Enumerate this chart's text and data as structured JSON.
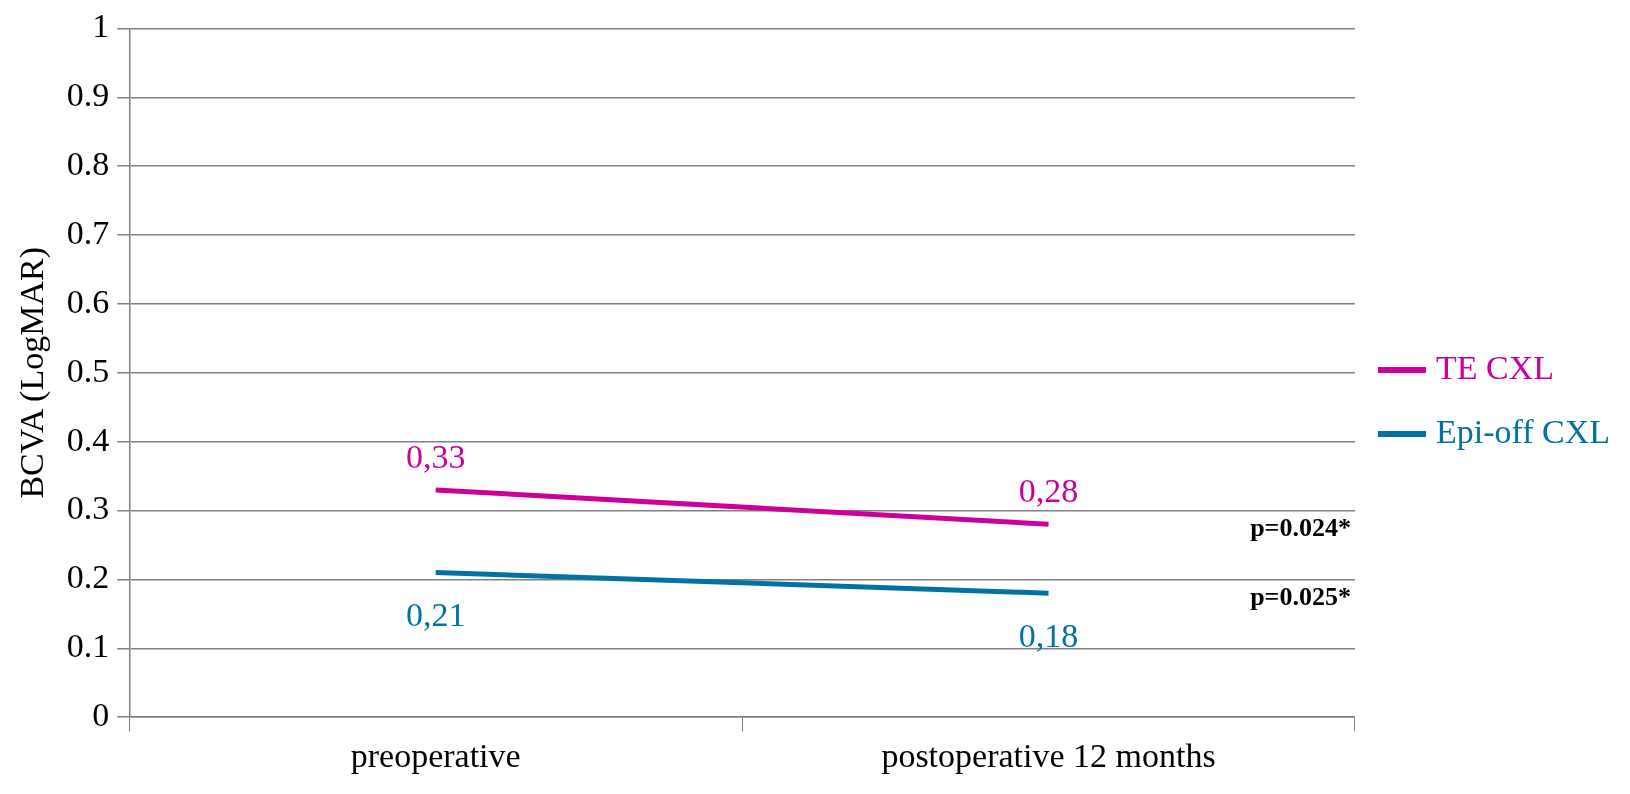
{
  "chart_data": {
    "type": "line",
    "ylabel": "BCVA (LogMAR)",
    "categories": [
      "preoperative",
      "postoperative 12 months"
    ],
    "series": [
      {
        "name": "TE CXL",
        "color": "#cc0099",
        "values": [
          0.33,
          0.28
        ],
        "value_labels": [
          "0,33",
          "0,28"
        ]
      },
      {
        "name": "Epi-off CXL",
        "color": "#0073a3",
        "values": [
          0.21,
          0.18
        ],
        "value_labels": [
          "0,21",
          "0,18"
        ]
      }
    ],
    "ylim": [
      0,
      1
    ],
    "yticks": [
      0,
      0.1,
      0.2,
      0.3,
      0.4,
      0.5,
      0.6,
      0.7,
      0.8,
      0.9,
      1
    ],
    "grid": "y",
    "legend": "right",
    "marker": "none",
    "line_style": "solid",
    "annotations": [
      "p=0.024*",
      "p=0.025*"
    ]
  }
}
